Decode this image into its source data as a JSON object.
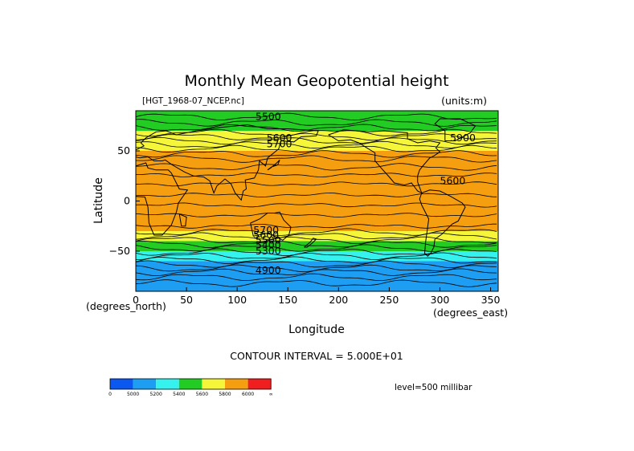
{
  "chart_data": {
    "type": "heatmap",
    "title": "Monthly Mean Geopotential height",
    "file_label": "[HGT_1968-07_NCEP.nc]",
    "units_label": "(units:m)",
    "xlabel": "Longitude",
    "ylabel": "Latitude",
    "x_units": "(degrees_east)",
    "y_units": "(degrees_north)",
    "xlim": [
      0,
      357.5
    ],
    "ylim": [
      -90,
      90
    ],
    "x_ticks": [
      "0",
      "50",
      "100",
      "150",
      "200",
      "250",
      "300",
      "350"
    ],
    "y_ticks": [
      "50",
      "0",
      "−50"
    ],
    "contour_interval": "CONTOUR INTERVAL = 5.000E+01",
    "level": "level=500 millibar",
    "contour_labels": [
      "5500",
      "5600",
      "5700",
      "5900",
      "5600",
      "5700",
      "5600",
      "5500",
      "5400",
      "5300",
      "4900"
    ],
    "colorbar": {
      "colors": [
        "#0a58f0",
        "#1e9ef2",
        "#36f2ee",
        "#22cc22",
        "#f5f53a",
        "#f59e0f",
        "#f01e1e"
      ],
      "tick_labels": [
        "0",
        "5000",
        "5200",
        "5400",
        "5600",
        "5800",
        "6000",
        "∞"
      ]
    },
    "latitude_profile": [
      {
        "lat": 90,
        "value": 5520
      },
      {
        "lat": 80,
        "value": 5560
      },
      {
        "lat": 70,
        "value": 5620
      },
      {
        "lat": 60,
        "value": 5700
      },
      {
        "lat": 50,
        "value": 5780
      },
      {
        "lat": 40,
        "value": 5840
      },
      {
        "lat": 30,
        "value": 5870
      },
      {
        "lat": 20,
        "value": 5880
      },
      {
        "lat": 10,
        "value": 5880
      },
      {
        "lat": 0,
        "value": 5870
      },
      {
        "lat": -10,
        "value": 5860
      },
      {
        "lat": -20,
        "value": 5840
      },
      {
        "lat": -30,
        "value": 5760
      },
      {
        "lat": -40,
        "value": 5600
      },
      {
        "lat": -50,
        "value": 5420
      },
      {
        "lat": -60,
        "value": 5250
      },
      {
        "lat": -70,
        "value": 5100
      },
      {
        "lat": -80,
        "value": 5020
      },
      {
        "lat": -90,
        "value": 4980
      }
    ]
  }
}
